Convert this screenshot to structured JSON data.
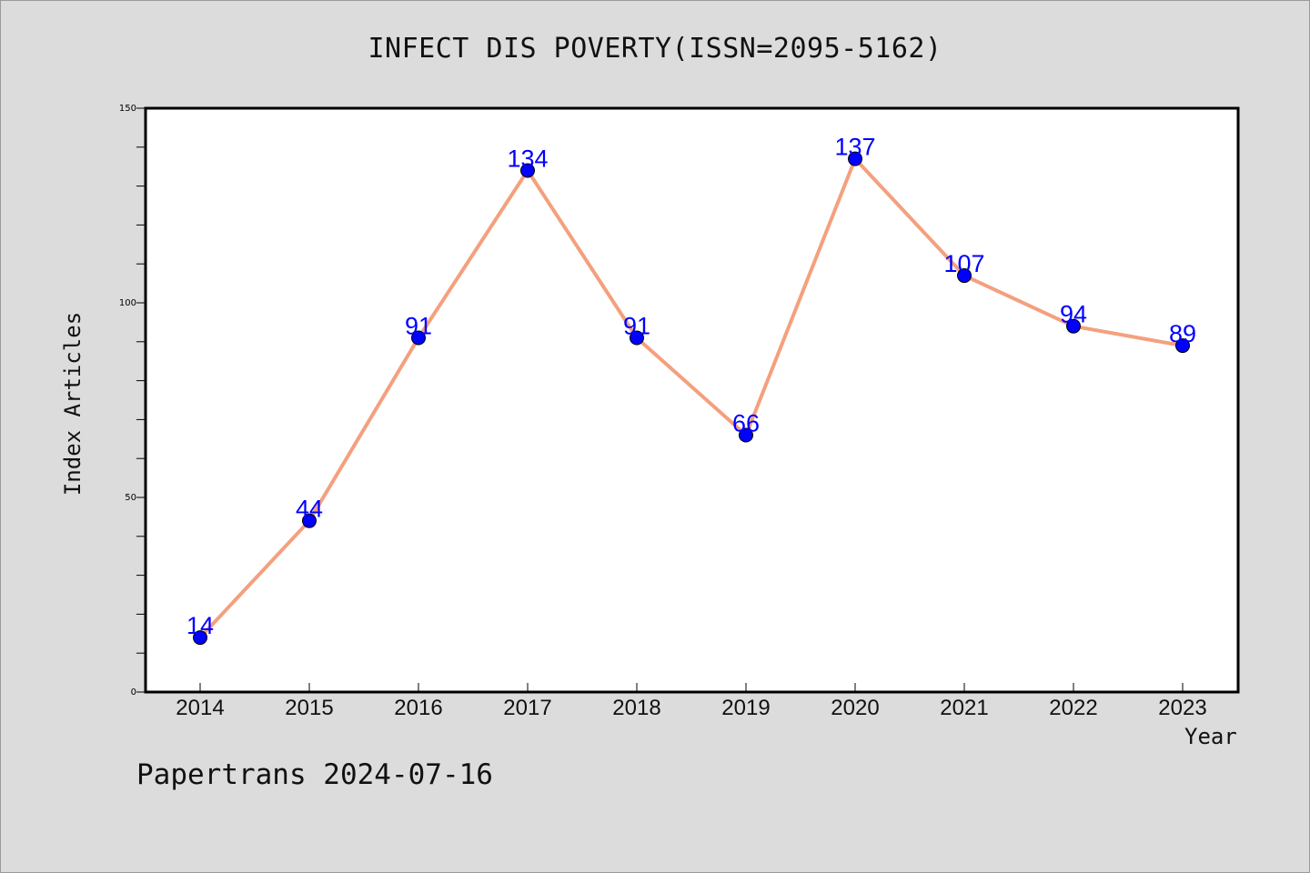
{
  "chart_data": {
    "type": "line",
    "title": "INFECT DIS POVERTY(ISSN=2095-5162)",
    "xlabel": "Year",
    "ylabel": "Index Articles",
    "categories": [
      "2014",
      "2015",
      "2016",
      "2017",
      "2018",
      "2019",
      "2020",
      "2021",
      "2022",
      "2023"
    ],
    "series": [
      {
        "values": [
          14,
          44,
          91,
          134,
          91,
          66,
          137,
          107,
          94,
          89
        ]
      }
    ],
    "ylim": [
      0,
      150
    ],
    "yticks": [
      0,
      50,
      100,
      150
    ],
    "grid": false,
    "data_labels": true,
    "colors": {
      "line": "#f4a07e",
      "marker": "#0000ff",
      "data_label": "#0000ff"
    }
  },
  "footer": "Papertrans 2024-07-16"
}
